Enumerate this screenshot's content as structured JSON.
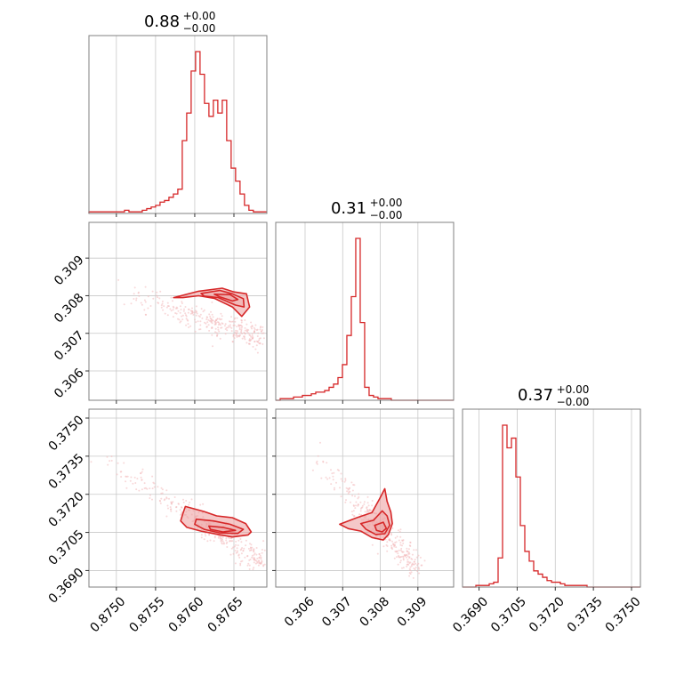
{
  "colors": {
    "main": "#d62728",
    "fill": "#ec9a9b",
    "scatter": "#f2b8b9",
    "grid": "#c8c8c8",
    "frame": "#808080"
  },
  "chart_data": {
    "type": "corner",
    "title": "",
    "parameters": [
      {
        "index": 0,
        "title_value": "0.88",
        "title_plus": "+0.00",
        "title_minus": "−0.00",
        "range": [
          0.87465,
          0.87692
        ],
        "ticks": [
          0.875,
          0.8755,
          0.876,
          0.8765
        ],
        "tick_labels": [
          "0.8750",
          "0.8755",
          "0.8760",
          "0.8765"
        ],
        "hist_edges_start": 0.87465,
        "hist_bin_width": 5.67e-05,
        "hist_counts": [
          1,
          1,
          1,
          1,
          1,
          1,
          1,
          1,
          2,
          1,
          1,
          1,
          2,
          3,
          4,
          5,
          7,
          8,
          10,
          12,
          15,
          45,
          62,
          88,
          100,
          86,
          68,
          60,
          70,
          62,
          70,
          45,
          28,
          20,
          12,
          5,
          2,
          1,
          1,
          1
        ]
      },
      {
        "index": 1,
        "title_value": "0.31",
        "title_plus": "+0.00",
        "title_minus": "−0.00",
        "range": [
          0.30522,
          0.30995
        ],
        "ticks": [
          0.306,
          0.307,
          0.308,
          0.309
        ],
        "tick_labels": [
          "0.306",
          "0.307",
          "0.308",
          "0.309"
        ],
        "hist_edges_start": 0.30522,
        "hist_bin_width": 0.0001182,
        "hist_counts": [
          0,
          1,
          1,
          1,
          2,
          2,
          3,
          3,
          4,
          5,
          5,
          6,
          8,
          10,
          14,
          22,
          40,
          64,
          100,
          48,
          8,
          3,
          2,
          1,
          1,
          1,
          0,
          0,
          0,
          0,
          0,
          0,
          0,
          0,
          0,
          0,
          0,
          0,
          0,
          0
        ]
      },
      {
        "index": 2,
        "title_value": "0.37",
        "title_plus": "+0.00",
        "title_minus": "−0.00",
        "range": [
          0.36835,
          0.37535
        ],
        "ticks": [
          0.369,
          0.3705,
          0.372,
          0.3735,
          0.375
        ],
        "tick_labels": [
          "0.3690",
          "0.3705",
          "0.3720",
          "0.3735",
          "0.3750"
        ],
        "hist_edges_start": 0.36835,
        "hist_bin_width": 0.000175,
        "hist_counts": [
          0,
          0,
          0,
          1,
          1,
          1,
          2,
          3,
          18,
          100,
          86,
          92,
          68,
          38,
          22,
          16,
          10,
          8,
          6,
          4,
          3,
          3,
          2,
          1,
          1,
          1,
          1,
          1,
          0,
          0,
          0,
          0,
          0,
          0,
          0,
          0,
          0,
          0,
          0,
          0
        ]
      }
    ],
    "contours": {
      "0_1": [
        [
          [
            0.87573,
            0.30795
          ],
          [
            0.87605,
            0.30812
          ],
          [
            0.87635,
            0.3082
          ],
          [
            0.8765,
            0.3081
          ],
          [
            0.87666,
            0.30805
          ],
          [
            0.8767,
            0.3077
          ],
          [
            0.8766,
            0.30745
          ],
          [
            0.87648,
            0.3077
          ],
          [
            0.87625,
            0.30793
          ],
          [
            0.87605,
            0.308
          ],
          [
            0.87585,
            0.30795
          ]
        ],
        [
          [
            0.87608,
            0.30806
          ],
          [
            0.87632,
            0.30814
          ],
          [
            0.87648,
            0.30805
          ],
          [
            0.87662,
            0.30792
          ],
          [
            0.87663,
            0.3077
          ],
          [
            0.87652,
            0.30775
          ],
          [
            0.8763,
            0.30795
          ],
          [
            0.87612,
            0.30799
          ]
        ],
        [
          [
            0.87625,
            0.30804
          ],
          [
            0.87645,
            0.30803
          ],
          [
            0.87655,
            0.3079
          ],
          [
            0.87648,
            0.30786
          ],
          [
            0.87632,
            0.30797
          ]
        ]
      ],
      "0_2": [
        [
          [
            0.87588,
            0.37152
          ],
          [
            0.87612,
            0.37132
          ],
          [
            0.87628,
            0.37115
          ],
          [
            0.87648,
            0.37108
          ],
          [
            0.87665,
            0.37085
          ],
          [
            0.87672,
            0.37052
          ],
          [
            0.87668,
            0.3704
          ],
          [
            0.87648,
            0.37032
          ],
          [
            0.8763,
            0.37042
          ],
          [
            0.87608,
            0.37055
          ],
          [
            0.8759,
            0.3707
          ],
          [
            0.87582,
            0.37095
          ],
          [
            0.87585,
            0.37125
          ]
        ],
        [
          [
            0.87602,
            0.37102
          ],
          [
            0.87624,
            0.37095
          ],
          [
            0.87645,
            0.37082
          ],
          [
            0.87662,
            0.37062
          ],
          [
            0.87655,
            0.37046
          ],
          [
            0.87632,
            0.37048
          ],
          [
            0.87612,
            0.37062
          ],
          [
            0.876,
            0.37082
          ]
        ],
        [
          [
            0.87618,
            0.37075
          ],
          [
            0.87636,
            0.3707
          ],
          [
            0.87652,
            0.37058
          ],
          [
            0.87636,
            0.37052
          ],
          [
            0.8762,
            0.37062
          ]
        ]
      ],
      "1_2": [
        [
          [
            0.30692,
            0.37082
          ],
          [
            0.30738,
            0.37108
          ],
          [
            0.30778,
            0.37128
          ],
          [
            0.30798,
            0.37182
          ],
          [
            0.30812,
            0.37222
          ],
          [
            0.30818,
            0.37172
          ],
          [
            0.30828,
            0.3713
          ],
          [
            0.30832,
            0.37085
          ],
          [
            0.30822,
            0.37042
          ],
          [
            0.30808,
            0.3702
          ],
          [
            0.30778,
            0.3703
          ],
          [
            0.30748,
            0.37055
          ],
          [
            0.30715,
            0.37065
          ]
        ],
        [
          [
            0.30748,
            0.37085
          ],
          [
            0.30782,
            0.37098
          ],
          [
            0.30805,
            0.37135
          ],
          [
            0.30818,
            0.37115
          ],
          [
            0.30825,
            0.37078
          ],
          [
            0.30812,
            0.37045
          ],
          [
            0.30788,
            0.37042
          ],
          [
            0.30762,
            0.37062
          ]
        ],
        [
          [
            0.30785,
            0.37078
          ],
          [
            0.30808,
            0.3709
          ],
          [
            0.30816,
            0.37066
          ],
          [
            0.30805,
            0.37052
          ],
          [
            0.3079,
            0.37058
          ]
        ]
      ]
    },
    "fit_lines": {
      "0_1": {
        "x_range": [
          0.87505,
          0.87685
        ],
        "y_at": [
          0.30805,
          0.3069
        ]
      },
      "0_2": {
        "x_range": [
          0.8747,
          0.87685
        ],
        "y_at": [
          0.37375,
          0.3693
        ]
      },
      "1_2": {
        "x_range": [
          0.30625,
          0.30895
        ],
        "y_at": [
          0.37355,
          0.3691
        ]
      }
    }
  }
}
